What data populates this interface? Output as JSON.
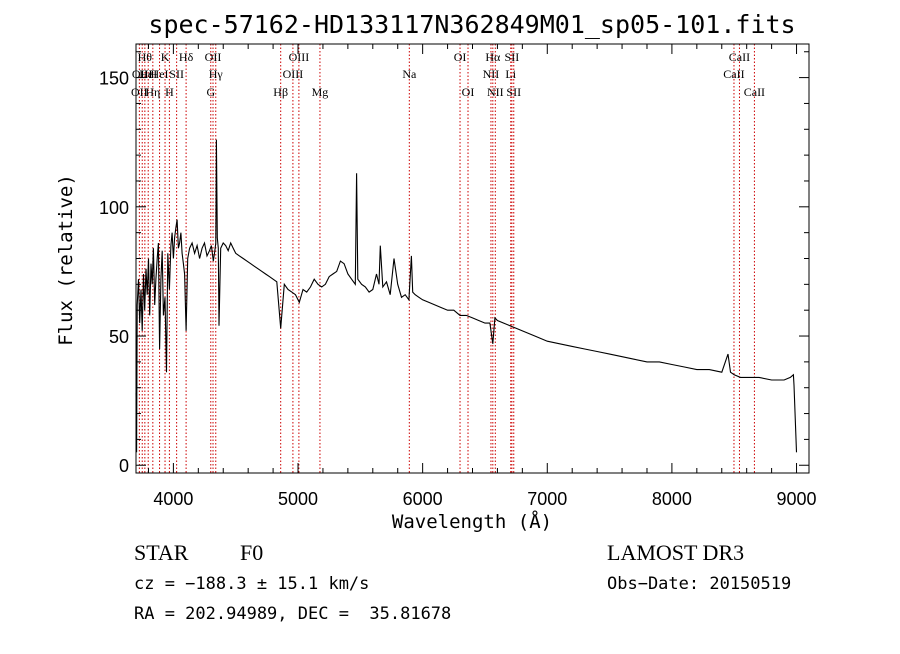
{
  "chart_data": {
    "type": "line",
    "title": "spec-57162-HD133117N362849M01_sp05-101.fits",
    "xlabel": "Wavelength (Å)",
    "ylabel": "Flux (relative)",
    "xlim": [
      3700,
      9100
    ],
    "ylim": [
      -3,
      163
    ],
    "x_ticks": [
      4000,
      5000,
      6000,
      7000,
      8000,
      9000
    ],
    "y_ticks": [
      0,
      50,
      100,
      150
    ],
    "series": [
      {
        "name": "spectrum",
        "x": [
          3700,
          3705,
          3710,
          3720,
          3730,
          3740,
          3750,
          3760,
          3770,
          3780,
          3790,
          3800,
          3810,
          3820,
          3830,
          3840,
          3850,
          3860,
          3870,
          3880,
          3889,
          3900,
          3910,
          3920,
          3933,
          3945,
          3955,
          3968,
          3980,
          3990,
          4000,
          4010,
          4020,
          4030,
          4040,
          4050,
          4060,
          4070,
          4080,
          4090,
          4102,
          4115,
          4130,
          4150,
          4170,
          4190,
          4210,
          4230,
          4250,
          4270,
          4290,
          4305,
          4320,
          4330,
          4340,
          4345,
          4352,
          4360,
          4366,
          4380,
          4400,
          4420,
          4440,
          4460,
          4480,
          4500,
          4530,
          4560,
          4590,
          4620,
          4650,
          4680,
          4710,
          4740,
          4770,
          4800,
          4830,
          4861,
          4890,
          4920,
          4950,
          4980,
          5010,
          5040,
          5070,
          5100,
          5130,
          5160,
          5190,
          5220,
          5250,
          5280,
          5310,
          5340,
          5370,
          5400,
          5430,
          5460,
          5470,
          5480,
          5510,
          5540,
          5570,
          5600,
          5630,
          5650,
          5660,
          5680,
          5710,
          5740,
          5770,
          5800,
          5830,
          5860,
          5890,
          5910,
          5920,
          5940,
          5970,
          6000,
          6050,
          6100,
          6150,
          6200,
          6250,
          6300,
          6350,
          6400,
          6450,
          6500,
          6540,
          6563,
          6580,
          6600,
          6650,
          6700,
          6750,
          6800,
          6900,
          7000,
          7100,
          7200,
          7300,
          7400,
          7500,
          7600,
          7700,
          7800,
          7900,
          8000,
          8100,
          8200,
          8300,
          8400,
          8450,
          8470,
          8500,
          8550,
          8600,
          8700,
          8800,
          8900,
          8950,
          8975,
          8980,
          9000
        ],
        "y": [
          28,
          5,
          62,
          72,
          55,
          68,
          52,
          74,
          60,
          76,
          66,
          80,
          58,
          78,
          70,
          84,
          62,
          72,
          80,
          86,
          45,
          72,
          83,
          58,
          65,
          36,
          82,
          68,
          85,
          90,
          80,
          88,
          92,
          95,
          84,
          86,
          90,
          82,
          78,
          74,
          52,
          80,
          84,
          86,
          82,
          85,
          80,
          84,
          86,
          81,
          83,
          85,
          79,
          82,
          86,
          126,
          88,
          84,
          54,
          84,
          86,
          85,
          83,
          86,
          84,
          82,
          81,
          80,
          79,
          78,
          77,
          76,
          75,
          74,
          73,
          72,
          71,
          53,
          70,
          68,
          67,
          66,
          63,
          68,
          67,
          69,
          72,
          70,
          69,
          70,
          73,
          74,
          75,
          79,
          78,
          74,
          72,
          70,
          113,
          72,
          70,
          69,
          67,
          68,
          74,
          70,
          85,
          69,
          71,
          66,
          80,
          70,
          65,
          66,
          64,
          81,
          67,
          66,
          65,
          64,
          63,
          62,
          61,
          60,
          60,
          58,
          58,
          57,
          56,
          55,
          55,
          47,
          57,
          56,
          55,
          54,
          53,
          52,
          50,
          48,
          47,
          46,
          45,
          44,
          43,
          42,
          41,
          40,
          40,
          39,
          38,
          37,
          37,
          36,
          43,
          36,
          35,
          34,
          34,
          34,
          33,
          33,
          34,
          35,
          31,
          5
        ]
      }
    ],
    "lines": [
      {
        "x": 3727,
        "label": "OII",
        "row": 3
      },
      {
        "x": 3750,
        "label": "OIII",
        "row": 2
      },
      {
        "x": 3771,
        "label": "Hθ",
        "row": 1
      },
      {
        "x": 3798,
        "label": "HeI",
        "row": 2
      },
      {
        "x": 3835,
        "label": "Hη",
        "row": 3
      },
      {
        "x": 3889,
        "label": "HeI",
        "row": 2
      },
      {
        "x": 3933,
        "label": "K",
        "row": 1
      },
      {
        "x": 3968,
        "label": "H",
        "row": 3
      },
      {
        "x": 4026,
        "label": "SII",
        "row": 2
      },
      {
        "x": 4102,
        "label": "Hδ",
        "row": 1
      },
      {
        "x": 4300,
        "label": "G",
        "row": 3
      },
      {
        "x": 4318,
        "label": "OII",
        "row": 1
      },
      {
        "x": 4340,
        "label": "Hγ",
        "row": 2
      },
      {
        "x": 4861,
        "label": "Hβ",
        "row": 3
      },
      {
        "x": 4959,
        "label": "OIII",
        "row": 2
      },
      {
        "x": 5007,
        "label": "OIII",
        "row": 1
      },
      {
        "x": 5176,
        "label": "Mg",
        "row": 3
      },
      {
        "x": 5893,
        "label": "Na",
        "row": 2
      },
      {
        "x": 6300,
        "label": "OI",
        "row": 1
      },
      {
        "x": 6364,
        "label": "OI",
        "row": 3
      },
      {
        "x": 6548,
        "label": "NII",
        "row": 2
      },
      {
        "x": 6563,
        "label": "Hα",
        "row": 1
      },
      {
        "x": 6583,
        "label": "NII",
        "row": 3
      },
      {
        "x": 6707,
        "label": "Li",
        "row": 2
      },
      {
        "x": 6716,
        "label": "SII",
        "row": 1
      },
      {
        "x": 6731,
        "label": "SII",
        "row": 3
      },
      {
        "x": 8498,
        "label": "CaII",
        "row": 2
      },
      {
        "x": 8542,
        "label": "CaII",
        "row": 1
      },
      {
        "x": 8662,
        "label": "CaII",
        "row": 3
      }
    ]
  },
  "info": {
    "object_class": "STAR",
    "subclass": "F0",
    "survey": "LAMOST DR3",
    "redshift_text": "cz = −188.3 ± 15.1 km/s",
    "obs_date_text": "Obs−Date: 20150519",
    "coords_text": "RA = 202.94989, DEC =  35.81678"
  },
  "colors": {
    "spectrum": "#000000",
    "line_marker": "#cc0000",
    "axes": "#000000"
  }
}
